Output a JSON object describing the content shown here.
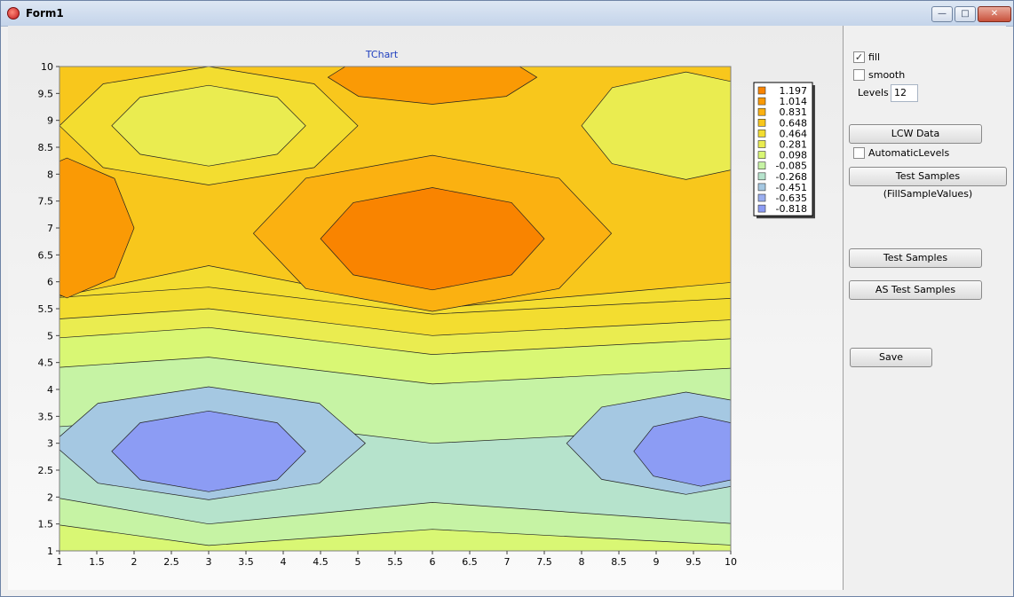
{
  "window": {
    "title": "Form1"
  },
  "controls": {
    "fill_label": "fill",
    "fill_checked": true,
    "smooth_label": "smooth",
    "smooth_checked": false,
    "levels_label": "Levels",
    "levels_value": "12",
    "lcw_button": "LCW Data",
    "automatic_levels_label": "AutomaticLevels",
    "automatic_levels_checked": false,
    "test_samples_fill_button": "Test Samples (FillSampleValues)",
    "test_samples_button": "Test Samples",
    "as_test_samples_button": "AS Test Samples",
    "save_button": "Save"
  },
  "chart_data": {
    "type": "heatmap",
    "title": "TChart",
    "x_ticks": [
      "1",
      "1.5",
      "2",
      "2.5",
      "3",
      "3.5",
      "4",
      "4.5",
      "5",
      "5.5",
      "6",
      "6.5",
      "7",
      "7.5",
      "8",
      "8.5",
      "9",
      "9.5",
      "10"
    ],
    "y_ticks": [
      "1",
      "1.5",
      "2",
      "2.5",
      "3",
      "3.5",
      "4",
      "4.5",
      "5",
      "5.5",
      "6",
      "6.5",
      "7",
      "7.5",
      "8",
      "8.5",
      "9",
      "9.5",
      "10"
    ],
    "xlim": [
      1,
      10
    ],
    "ylim": [
      1,
      10
    ],
    "legend_position": "right",
    "levels": [
      {
        "label": "1.197",
        "color": "#f98400"
      },
      {
        "label": "1.014",
        "color": "#fa9a05"
      },
      {
        "label": "0.831",
        "color": "#fbb111"
      },
      {
        "label": "0.648",
        "color": "#f8c71c"
      },
      {
        "label": "0.464",
        "color": "#f3dd30"
      },
      {
        "label": "0.281",
        "color": "#eaec50"
      },
      {
        "label": "0.098",
        "color": "#d9f774"
      },
      {
        "label": "-0.085",
        "color": "#c6f3a4"
      },
      {
        "label": "-0.268",
        "color": "#b6e3cc"
      },
      {
        "label": "-0.451",
        "color": "#a5c8e2"
      },
      {
        "label": "-0.635",
        "color": "#9aaef0"
      },
      {
        "label": "-0.818",
        "color": "#8c9cf4"
      }
    ]
  }
}
